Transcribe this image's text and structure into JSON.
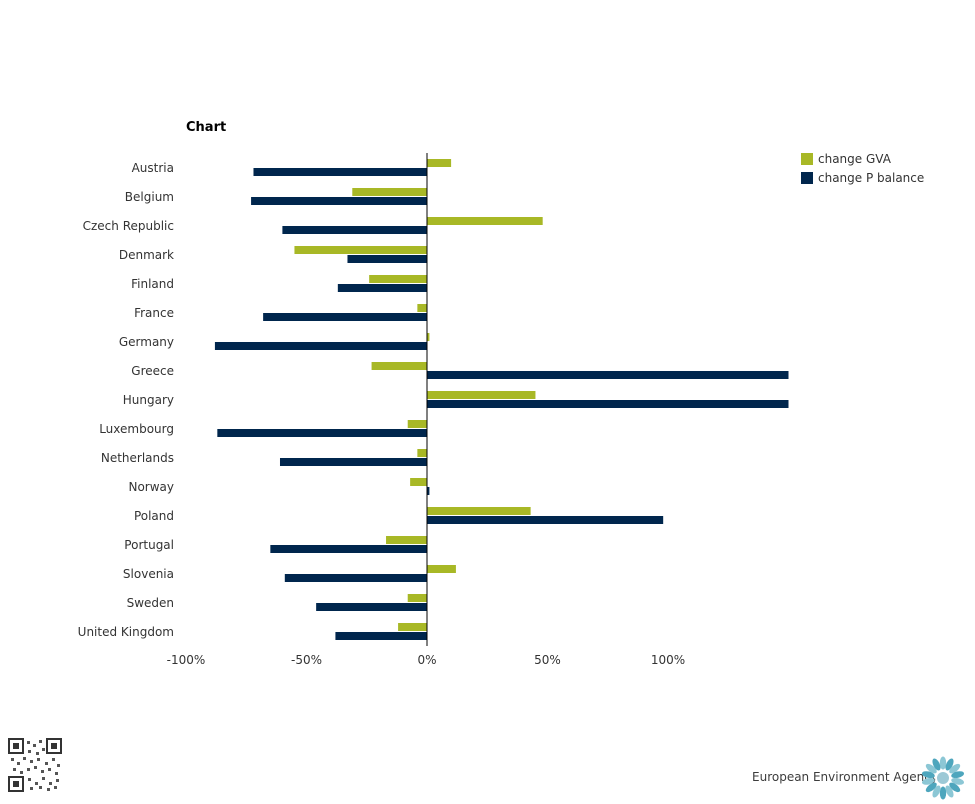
{
  "chart_data": {
    "type": "bar",
    "orientation": "horizontal",
    "title": "Chart",
    "categories": [
      "Austria",
      "Belgium",
      "Czech Republic",
      "Denmark",
      "Finland",
      "France",
      "Germany",
      "Greece",
      "Hungary",
      "Luxembourg",
      "Netherlands",
      "Norway",
      "Poland",
      "Portugal",
      "Slovenia",
      "Sweden",
      "United Kingdom"
    ],
    "series": [
      {
        "name": "change GVA",
        "color": "#a8b826",
        "values": [
          10,
          -31,
          48,
          -55,
          -24,
          -4,
          1,
          -23,
          45,
          -8,
          -4,
          -7,
          43,
          -17,
          12,
          -8,
          -12
        ]
      },
      {
        "name": "change P balance",
        "color": "#00264d",
        "values": [
          -72,
          -73,
          -60,
          -33,
          -37,
          -68,
          -88,
          150,
          150,
          -87,
          -61,
          1,
          98,
          -65,
          -59,
          -46,
          -38
        ]
      }
    ],
    "xlim": [
      -100,
      150
    ],
    "xticks": [
      "-100%",
      "-50%",
      "0%",
      "50%",
      "100%"
    ],
    "xtick_values": [
      -100,
      -50,
      0,
      50,
      100
    ],
    "legend_position": "top-right"
  },
  "footer": {
    "agency": "European Environment Agency"
  }
}
